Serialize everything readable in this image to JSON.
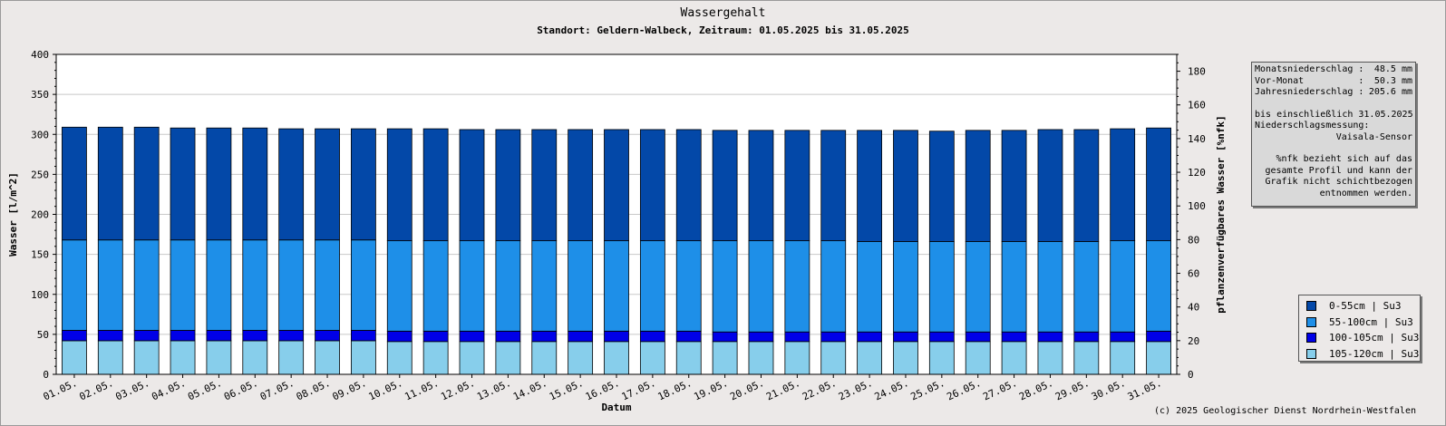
{
  "chart_data": {
    "type": "bar",
    "stacked": true,
    "title": "Wassergehalt",
    "subtitle": "Standort: Geldern-Walbeck, Zeitraum: 01.05.2025 bis 31.05.2025",
    "xlabel": "Datum",
    "ylabel": "Wasser [l/m^2]",
    "y2label": "pflanzenverfügbares Wasser [%nfk]",
    "ylim": [
      0,
      400
    ],
    "yticks": [
      0,
      50,
      100,
      150,
      200,
      250,
      300,
      350,
      400
    ],
    "y2lim": [
      0,
      190
    ],
    "y2ticks": [
      0,
      20,
      40,
      60,
      80,
      100,
      120,
      140,
      160,
      180
    ],
    "grid": true,
    "legend_position": "bottom-right",
    "categories": [
      "01.05.",
      "02.05.",
      "03.05.",
      "04.05.",
      "05.05.",
      "06.05.",
      "07.05.",
      "08.05.",
      "09.05.",
      "10.05.",
      "11.05.",
      "12.05.",
      "13.05.",
      "14.05.",
      "15.05.",
      "16.05.",
      "17.05.",
      "18.05.",
      "19.05.",
      "20.05.",
      "21.05.",
      "22.05.",
      "23.05.",
      "24.05.",
      "25.05.",
      "26.05.",
      "27.05.",
      "28.05.",
      "29.05.",
      "30.05.",
      "31.05."
    ],
    "series": [
      {
        "name": "105-120cm | Su3",
        "color": "#87ceeb",
        "values": [
          42,
          42,
          42,
          42,
          42,
          42,
          42,
          42,
          42,
          41,
          41,
          41,
          41,
          41,
          41,
          41,
          41,
          41,
          41,
          41,
          41,
          41,
          41,
          41,
          41,
          41,
          41,
          41,
          41,
          41,
          41
        ]
      },
      {
        "name": "100-105cm | Su3",
        "color": "#0000e8",
        "values": [
          13,
          13,
          13,
          13,
          13,
          13,
          13,
          13,
          13,
          13,
          13,
          13,
          13,
          13,
          13,
          13,
          13,
          13,
          12,
          12,
          12,
          12,
          12,
          12,
          12,
          12,
          12,
          12,
          12,
          12,
          13
        ]
      },
      {
        "name": "55-100cm | Su3",
        "color": "#1e8fe8",
        "values": [
          113,
          113,
          113,
          113,
          113,
          113,
          113,
          113,
          113,
          113,
          113,
          113,
          113,
          113,
          113,
          113,
          113,
          113,
          114,
          114,
          114,
          114,
          113,
          113,
          113,
          113,
          113,
          113,
          113,
          114,
          113
        ]
      },
      {
        "name": "0-55cm | Su3",
        "color": "#0348a8",
        "values": [
          141,
          141,
          141,
          140,
          140,
          140,
          139,
          139,
          139,
          140,
          140,
          139,
          139,
          139,
          139,
          139,
          139,
          139,
          138,
          138,
          138,
          138,
          139,
          139,
          138,
          139,
          139,
          140,
          140,
          140,
          141
        ]
      }
    ]
  },
  "legend": {
    "items": [
      {
        "label": "0-55cm | Su3",
        "color": "#0348a8"
      },
      {
        "label": "55-100cm | Su3",
        "color": "#1e8fe8"
      },
      {
        "label": "100-105cm | Su3",
        "color": "#0000e8"
      },
      {
        "label": "105-120cm | Su3",
        "color": "#87ceeb"
      }
    ]
  },
  "info": {
    "monat_label": "Monatsniederschlag :",
    "monat_value": "48.5 mm",
    "vormonat_label": "Vor-Monat          :",
    "vormonat_value": "50.3 mm",
    "jahr_label": "Jahresniederschlag :",
    "jahr_value": "205.6 mm",
    "until": "bis einschließlich 31.05.2025",
    "measurement_label": "Niederschlagsmessung:",
    "sensor": "Vaisala-Sensor",
    "note_1": "%nfk bezieht sich auf das",
    "note_2": "gesamte Profil und kann der",
    "note_3": "Grafik nicht schichtbezogen",
    "note_4": "entnommen werden."
  },
  "copyright": "(c) 2025 Geologischer Dienst Nordrhein-Westfalen"
}
